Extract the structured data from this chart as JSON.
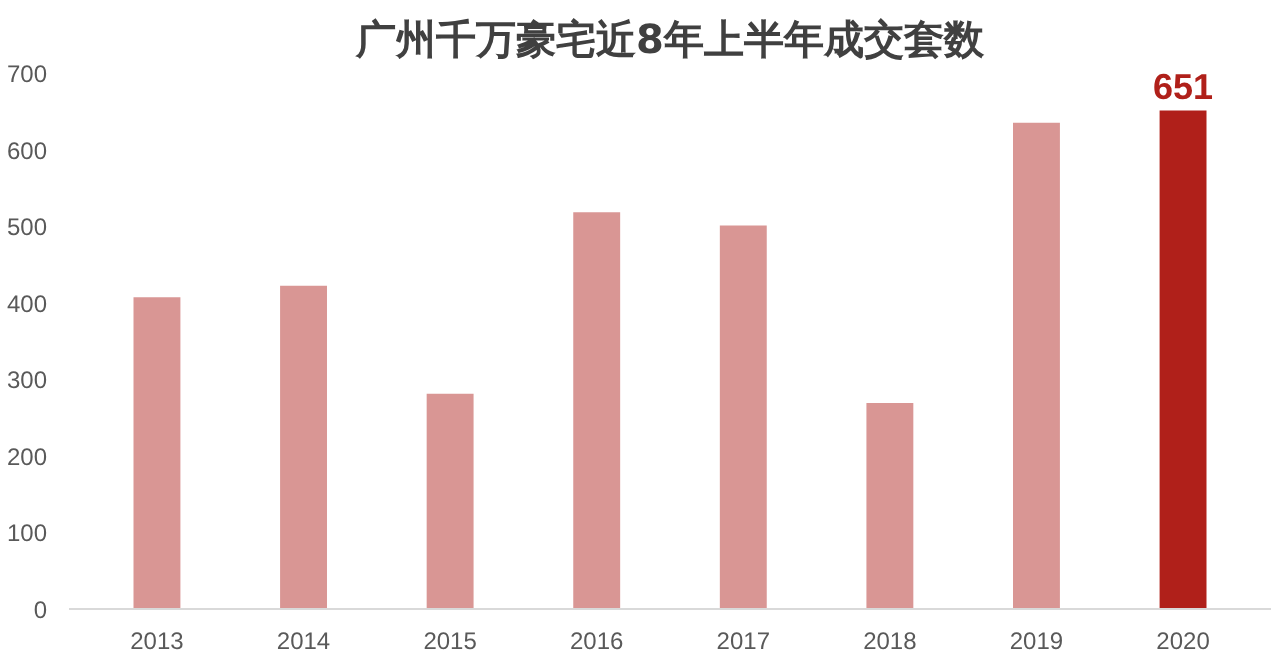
{
  "chart_data": {
    "type": "bar",
    "title": "广州千万豪宅近8年上半年成交套数",
    "categories": [
      "2013",
      "2014",
      "2015",
      "2016",
      "2017",
      "2018",
      "2019",
      "2020"
    ],
    "values": [
      407,
      422,
      281,
      518,
      501,
      269,
      635,
      651
    ],
    "colors": [
      "#d99694",
      "#d99694",
      "#d99694",
      "#d99694",
      "#d99694",
      "#d99694",
      "#d99694",
      "#b0201a"
    ],
    "value_labels": [
      null,
      null,
      null,
      null,
      null,
      null,
      null,
      "651"
    ],
    "ylim": [
      0,
      700
    ],
    "yticks": [
      0,
      100,
      200,
      300,
      400,
      500,
      600,
      700
    ],
    "grid": false
  }
}
